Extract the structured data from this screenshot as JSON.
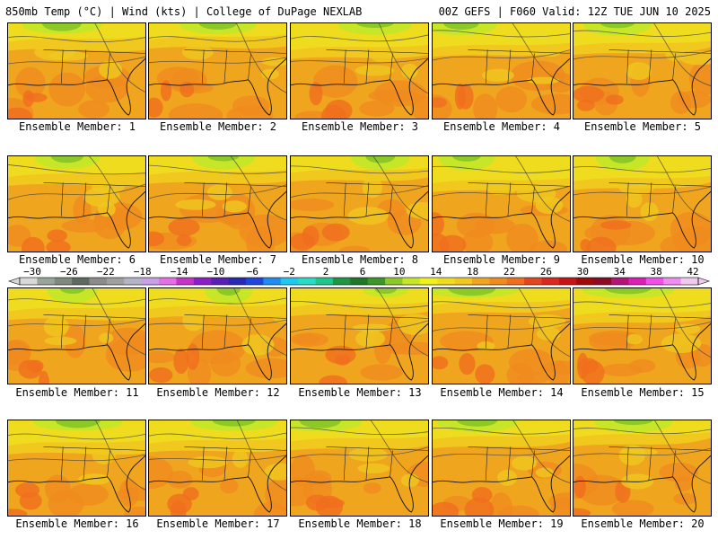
{
  "header": {
    "left_title": "850mb Temp (°C) | Wind (kts) | College of DuPage NEXLAB",
    "right_title": "00Z GEFS | F060 Valid: 12Z TUE JUN 10 2025"
  },
  "panels": [
    {
      "label": "Ensemble Member: 1"
    },
    {
      "label": "Ensemble Member: 2"
    },
    {
      "label": "Ensemble Member: 3"
    },
    {
      "label": "Ensemble Member: 4"
    },
    {
      "label": "Ensemble Member: 5"
    },
    {
      "label": "Ensemble Member: 6"
    },
    {
      "label": "Ensemble Member: 7"
    },
    {
      "label": "Ensemble Member: 8"
    },
    {
      "label": "Ensemble Member: 9"
    },
    {
      "label": "Ensemble Member: 10"
    },
    {
      "label": "Ensemble Member: 11"
    },
    {
      "label": "Ensemble Member: 12"
    },
    {
      "label": "Ensemble Member: 13"
    },
    {
      "label": "Ensemble Member: 14"
    },
    {
      "label": "Ensemble Member: 15"
    },
    {
      "label": "Ensemble Member: 16"
    },
    {
      "label": "Ensemble Member: 17"
    },
    {
      "label": "Ensemble Member: 18"
    },
    {
      "label": "Ensemble Member: 19"
    },
    {
      "label": "Ensemble Member: 20"
    }
  ],
  "colorbar": {
    "labels": [
      "−30",
      "−26",
      "−22",
      "−18",
      "−14",
      "−10",
      "−6",
      "−2",
      "2",
      "6",
      "10",
      "14",
      "18",
      "22",
      "26",
      "30",
      "34",
      "38",
      "42"
    ],
    "colors": [
      "#d8d8d8",
      "#9aa59a",
      "#7d8a7d",
      "#5f6a5f",
      "#8c8c8c",
      "#a0a0a0",
      "#b4b4c8",
      "#c8a0e6",
      "#e66ee6",
      "#c832c8",
      "#8c1ec8",
      "#5a1eb4",
      "#2828b4",
      "#1e46dc",
      "#1e8cf0",
      "#1ec8f0",
      "#28dcc8",
      "#1ec88c",
      "#1e9646",
      "#1e7828",
      "#3c9628",
      "#8cc828",
      "#c8e628",
      "#f0f01e",
      "#f0dc1e",
      "#f0c81e",
      "#f0a51e",
      "#f08c1e",
      "#f06e1e",
      "#e6461e",
      "#dc281e",
      "#c81414",
      "#a00a0a",
      "#8c0a28",
      "#b41478",
      "#dc1eb4",
      "#f050e6",
      "#f08cf0",
      "#f0c8f0"
    ]
  }
}
